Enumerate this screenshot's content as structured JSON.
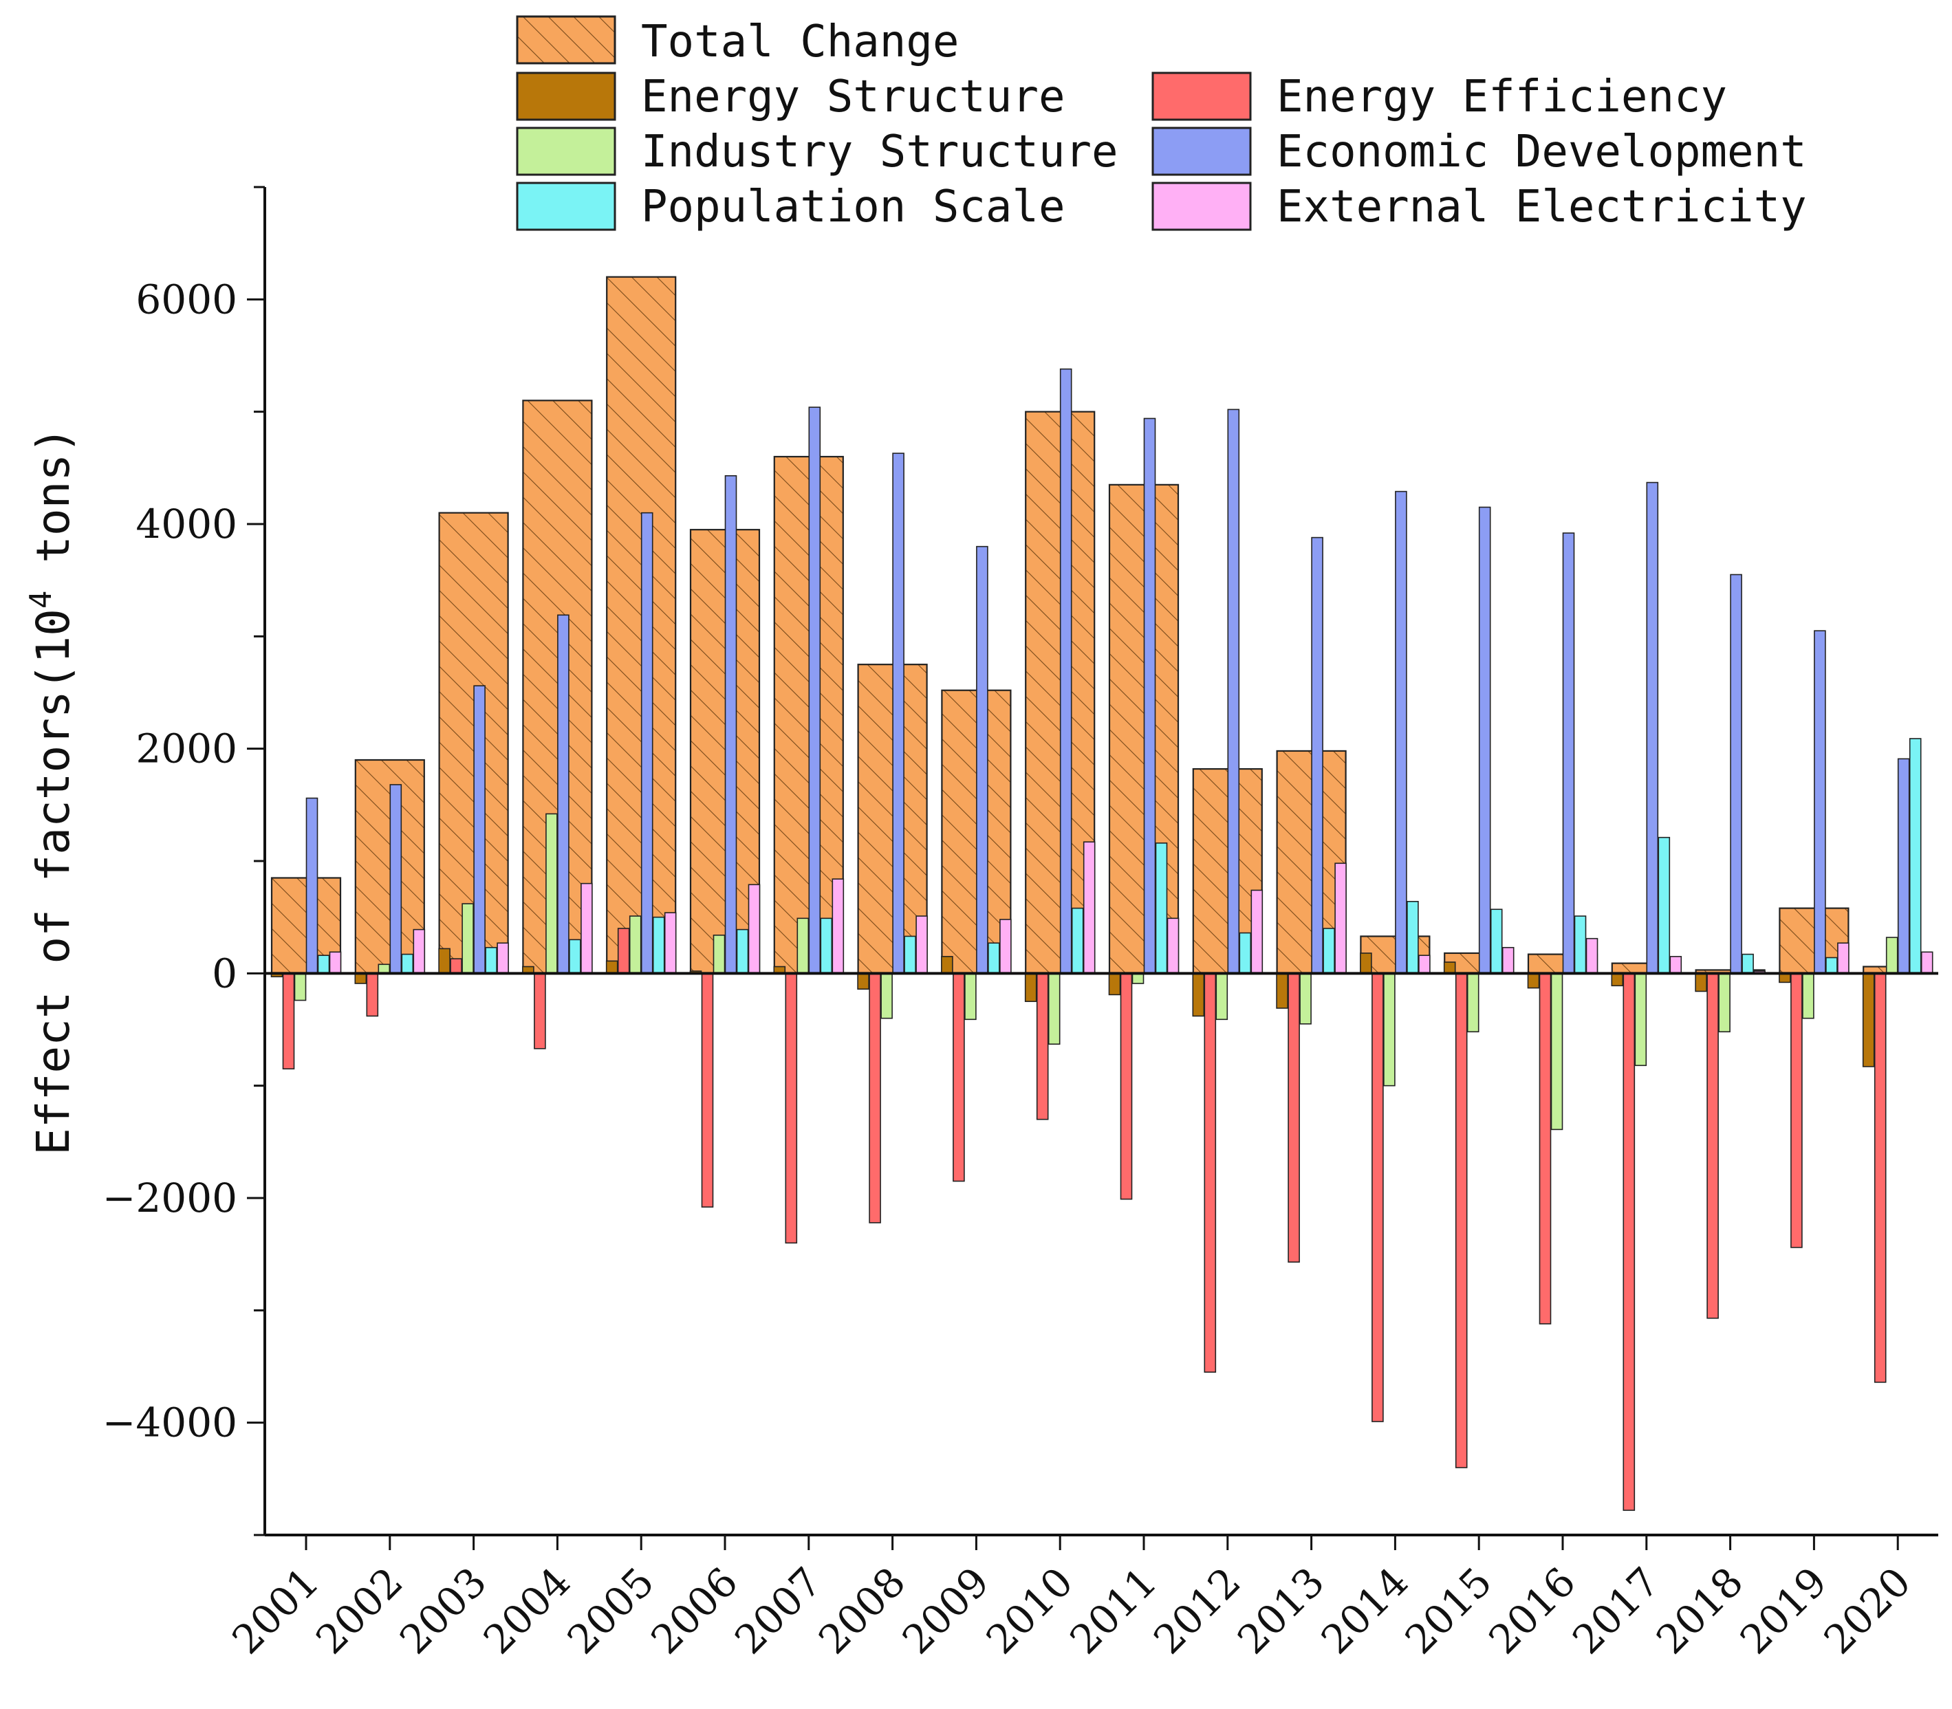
{
  "chart_data": {
    "type": "bar",
    "title": "",
    "xlabel": "",
    "ylabel": "Effect of factors(10",
    "ylabel_sup": "4",
    "ylabel_suffix": " tons)",
    "ylim": [
      -5000,
      7000
    ],
    "yticks": [
      -4000,
      -2000,
      0,
      2000,
      4000,
      6000
    ],
    "categories": [
      "2001",
      "2002",
      "2003",
      "2004",
      "2005",
      "2006",
      "2007",
      "2008",
      "2009",
      "2010",
      "2011",
      "2012",
      "2013",
      "2014",
      "2015",
      "2016",
      "2017",
      "2018",
      "2019",
      "2020"
    ],
    "total": {
      "name": "Total Change",
      "color": "#f7a55c",
      "values": [
        850,
        1900,
        4100,
        5100,
        6200,
        3950,
        4600,
        2750,
        2520,
        5000,
        4350,
        1820,
        1980,
        330,
        180,
        170,
        90,
        30,
        580,
        60
      ]
    },
    "series": [
      {
        "name": "Energy Structure",
        "color": "#b8770a",
        "values": [
          -30,
          -90,
          220,
          60,
          110,
          20,
          60,
          -140,
          150,
          -250,
          -190,
          -380,
          -310,
          180,
          100,
          -130,
          -110,
          -160,
          -80,
          -830
        ]
      },
      {
        "name": "Energy Efficiency",
        "color": "#ff6b6b",
        "values": [
          -850,
          -380,
          130,
          -670,
          400,
          -2080,
          -2400,
          -2220,
          -1850,
          -1300,
          -2010,
          -3550,
          -2570,
          -3990,
          -4400,
          -3120,
          -4780,
          -3070,
          -2440,
          -3640
        ]
      },
      {
        "name": "Industry Structure",
        "color": "#c4f09a",
        "values": [
          -240,
          80,
          620,
          1420,
          510,
          340,
          490,
          -400,
          -410,
          -630,
          -90,
          -410,
          -450,
          -1000,
          -520,
          -1390,
          -820,
          -520,
          -400,
          320
        ]
      },
      {
        "name": "Economic Development",
        "color": "#8c9df4",
        "values": [
          1560,
          1680,
          2560,
          3190,
          4100,
          4430,
          5040,
          4630,
          3800,
          5380,
          4940,
          5020,
          3880,
          4290,
          4150,
          3920,
          4370,
          3550,
          3050,
          1910
        ]
      },
      {
        "name": "Population Scale",
        "color": "#7af3f5",
        "values": [
          160,
          170,
          230,
          300,
          500,
          390,
          490,
          330,
          270,
          580,
          1160,
          360,
          400,
          640,
          570,
          510,
          1210,
          170,
          140,
          2090
        ]
      },
      {
        "name": "External Electricity",
        "color": "#ffb0f5",
        "values": [
          190,
          390,
          270,
          800,
          540,
          790,
          840,
          510,
          480,
          1170,
          490,
          740,
          980,
          160,
          230,
          310,
          150,
          20,
          270,
          190
        ]
      }
    ]
  },
  "legend": {
    "items": [
      {
        "label": "Total Change",
        "color": "#f7a55c",
        "hatched": true
      },
      {
        "label": "Energy Structure",
        "color": "#b8770a",
        "hatched": false
      },
      {
        "label": "Energy Efficiency",
        "color": "#ff6b6b",
        "hatched": false
      },
      {
        "label": "Industry Structure",
        "color": "#c4f09a",
        "hatched": false
      },
      {
        "label": "Economic Development",
        "color": "#8c9df4",
        "hatched": false
      },
      {
        "label": "Population Scale",
        "color": "#7af3f5",
        "hatched": false
      },
      {
        "label": "External Electricity",
        "color": "#ffb0f5",
        "hatched": false
      }
    ]
  }
}
